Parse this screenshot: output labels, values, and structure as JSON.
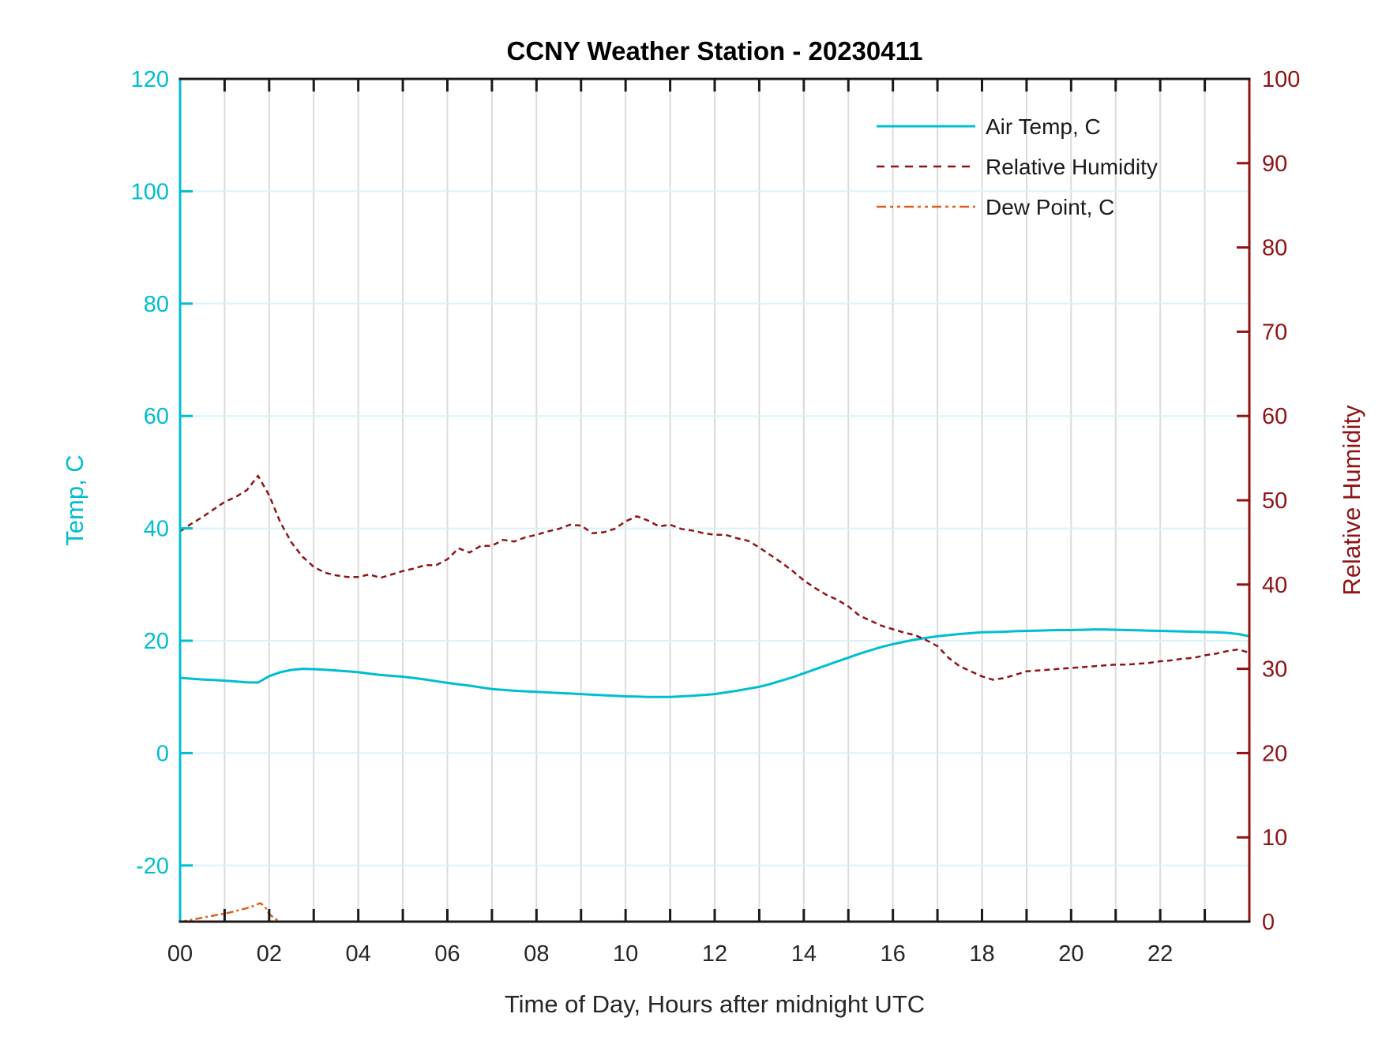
{
  "title": "CCNY Weather Station - 20230411",
  "chart_data": {
    "type": "line",
    "title": "CCNY Weather Station - 20230411",
    "xlabel": "Time of Day, Hours after midnight UTC",
    "ylabel_left": "Temp, C",
    "ylabel_right": "Relative Humidity",
    "xlim": [
      0,
      24
    ],
    "x_gridline_step_hours": 1,
    "x_tick_step_hours": 1,
    "x_tick_labels": [
      {
        "value": 0,
        "label": "00"
      },
      {
        "value": 2,
        "label": "02"
      },
      {
        "value": 4,
        "label": "04"
      },
      {
        "value": 6,
        "label": "06"
      },
      {
        "value": 8,
        "label": "08"
      },
      {
        "value": 10,
        "label": "10"
      },
      {
        "value": 12,
        "label": "12"
      },
      {
        "value": 14,
        "label": "14"
      },
      {
        "value": 16,
        "label": "16"
      },
      {
        "value": 18,
        "label": "18"
      },
      {
        "value": 20,
        "label": "20"
      },
      {
        "value": 22,
        "label": "22"
      }
    ],
    "ylim_left": [
      -30,
      120
    ],
    "yticks_left": [
      -20,
      0,
      20,
      40,
      60,
      80,
      100,
      120
    ],
    "ylim_right": [
      0,
      100
    ],
    "yticks_right": [
      0,
      10,
      20,
      30,
      40,
      50,
      60,
      70,
      80,
      90,
      100
    ],
    "grid": true,
    "legend_position": "top-right-inside",
    "legend_entries": [
      "Air Temp, C",
      "Relative Humidity",
      "Dew Point, C"
    ],
    "series": [
      {
        "name": "Air Temp, C",
        "axis": "left",
        "color": "#00bdd1",
        "style": "solid",
        "line_width": 3,
        "x": [
          0,
          0.25,
          0.5,
          0.75,
          1,
          1.25,
          1.5,
          1.75,
          2,
          2.25,
          2.5,
          2.75,
          3,
          3.25,
          3.5,
          3.75,
          4,
          4.25,
          4.5,
          4.75,
          5,
          5.25,
          5.5,
          5.75,
          6,
          6.25,
          6.5,
          6.75,
          7,
          7.25,
          7.5,
          7.75,
          8,
          8.25,
          8.5,
          8.75,
          9,
          9.25,
          9.5,
          9.75,
          10,
          10.25,
          10.5,
          10.75,
          11,
          11.25,
          11.5,
          11.75,
          12,
          12.25,
          12.5,
          12.75,
          13,
          13.25,
          13.5,
          13.75,
          14,
          14.25,
          14.5,
          14.75,
          15,
          15.25,
          15.5,
          15.75,
          16,
          16.25,
          16.5,
          16.75,
          17,
          17.25,
          17.5,
          17.75,
          18,
          18.25,
          18.5,
          18.75,
          19,
          19.25,
          19.5,
          19.75,
          20,
          20.25,
          20.5,
          20.75,
          21,
          21.25,
          21.5,
          21.75,
          22,
          22.25,
          22.5,
          22.75,
          23,
          23.25,
          23.5,
          23.75,
          24
        ],
        "values": [
          13.4,
          13.25,
          13.1,
          13.0,
          12.9,
          12.75,
          12.6,
          12.55,
          13.7,
          14.4,
          14.8,
          15.0,
          14.95,
          14.85,
          14.7,
          14.55,
          14.4,
          14.15,
          13.9,
          13.75,
          13.6,
          13.35,
          13.1,
          12.8,
          12.5,
          12.25,
          12.0,
          11.7,
          11.4,
          11.25,
          11.1,
          11.0,
          10.9,
          10.8,
          10.7,
          10.6,
          10.5,
          10.4,
          10.3,
          10.2,
          10.1,
          10.05,
          10.0,
          10.0,
          10.0,
          10.1,
          10.2,
          10.35,
          10.5,
          10.8,
          11.1,
          11.45,
          11.8,
          12.3,
          12.9,
          13.5,
          14.2,
          14.9,
          15.6,
          16.3,
          17.0,
          17.7,
          18.3,
          18.9,
          19.4,
          19.8,
          20.2,
          20.5,
          20.8,
          21.0,
          21.2,
          21.35,
          21.5,
          21.55,
          21.6,
          21.7,
          21.75,
          21.8,
          21.85,
          21.9,
          21.9,
          21.95,
          22.0,
          22.0,
          21.95,
          21.9,
          21.85,
          21.8,
          21.75,
          21.7,
          21.65,
          21.6,
          21.55,
          21.5,
          21.4,
          21.2,
          20.8
        ]
      },
      {
        "name": "Relative Humidity",
        "axis": "right",
        "color": "#8f1314",
        "style": "dashed",
        "line_width": 2.5,
        "x": [
          0,
          0.25,
          0.5,
          0.75,
          1,
          1.25,
          1.5,
          1.75,
          2,
          2.25,
          2.5,
          2.75,
          3,
          3.25,
          3.5,
          3.75,
          4,
          4.25,
          4.5,
          4.75,
          5,
          5.25,
          5.5,
          5.75,
          6,
          6.25,
          6.5,
          6.75,
          7,
          7.25,
          7.5,
          7.75,
          8,
          8.25,
          8.5,
          8.75,
          9,
          9.25,
          9.5,
          9.75,
          10,
          10.25,
          10.5,
          10.75,
          11,
          11.25,
          11.5,
          11.75,
          12,
          12.25,
          12.5,
          12.75,
          13,
          13.25,
          13.5,
          13.75,
          14,
          14.25,
          14.5,
          14.75,
          15,
          15.25,
          15.5,
          15.75,
          16,
          16.25,
          16.5,
          16.75,
          17,
          17.25,
          17.5,
          17.75,
          18,
          18.25,
          18.5,
          18.75,
          19,
          19.25,
          19.5,
          19.75,
          20,
          20.25,
          20.5,
          20.75,
          21,
          21.25,
          21.5,
          21.75,
          22,
          22.25,
          22.5,
          22.75,
          23,
          23.25,
          23.5,
          23.75,
          24
        ],
        "values": [
          46.3,
          47.2,
          48.0,
          48.9,
          49.8,
          50.4,
          51.2,
          52.9,
          50.6,
          47.4,
          45.0,
          43.3,
          42.1,
          41.4,
          41.1,
          40.9,
          40.9,
          41.2,
          40.8,
          41.2,
          41.6,
          41.9,
          42.3,
          42.3,
          43.0,
          44.3,
          43.8,
          44.6,
          44.6,
          45.3,
          45.1,
          45.6,
          45.9,
          46.3,
          46.6,
          47.1,
          47.0,
          46.1,
          46.2,
          46.6,
          47.5,
          48.1,
          47.6,
          46.9,
          47.1,
          46.6,
          46.4,
          46.1,
          45.9,
          45.9,
          45.5,
          45.2,
          44.4,
          43.5,
          42.6,
          41.6,
          40.5,
          39.6,
          38.8,
          38.2,
          37.4,
          36.3,
          35.7,
          35.1,
          34.7,
          34.3,
          34.0,
          33.4,
          32.7,
          31.3,
          30.3,
          29.7,
          29.1,
          28.7,
          28.9,
          29.3,
          29.7,
          29.8,
          29.9,
          30.0,
          30.1,
          30.2,
          30.3,
          30.4,
          30.5,
          30.5,
          30.6,
          30.7,
          30.9,
          31.0,
          31.2,
          31.3,
          31.6,
          31.8,
          32.1,
          32.3,
          31.9
        ]
      },
      {
        "name": "Dew Point, C",
        "axis": "left",
        "color": "#de5f1e",
        "style": "dashdot",
        "line_width": 2.5,
        "x": [
          0,
          0.15,
          0.3,
          0.5,
          0.7,
          0.9,
          1.1,
          1.3,
          1.5,
          1.65,
          1.8,
          1.9,
          2.0,
          2.1,
          2.2,
          2.3,
          2.4
        ],
        "values": [
          -30.2,
          -29.8,
          -29.6,
          -29.3,
          -29.0,
          -28.7,
          -28.4,
          -28.0,
          -27.6,
          -27.2,
          -26.7,
          -27.3,
          -28.6,
          -29.3,
          -29.8,
          -30.1,
          -30.5
        ]
      }
    ]
  },
  "colors": {
    "left_axis": "#00bdd1",
    "right_axis": "#8f1314",
    "x_axis": "#1a1a1a",
    "grid_vertical": "#dbdbdb",
    "grid_horizontal": "#d8f3f8",
    "background": "#ffffff"
  }
}
